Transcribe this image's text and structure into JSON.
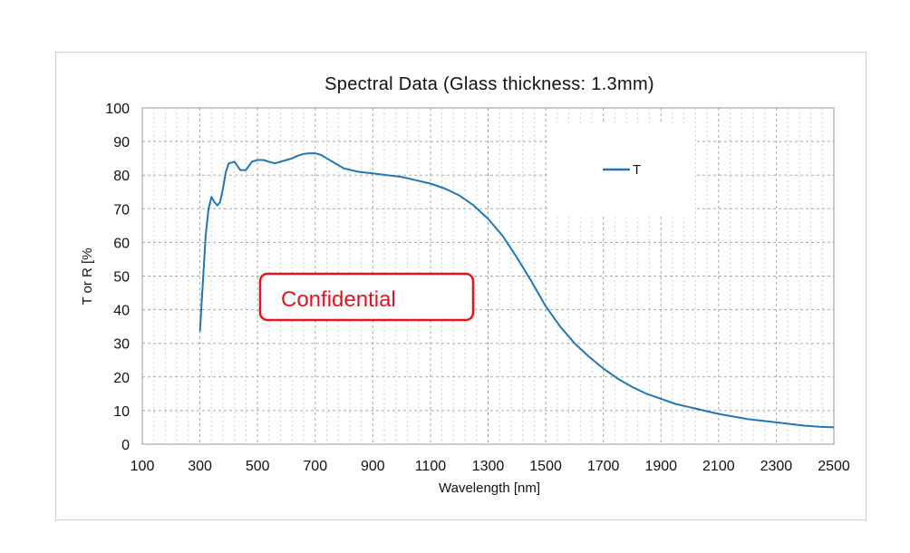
{
  "chart_data": {
    "type": "line",
    "title": "Spectral Data (Glass thickness: 1.3mm)",
    "xlabel": "Wavelength [nm]",
    "ylabel": "T or R [%",
    "xlim": [
      100,
      2500
    ],
    "ylim": [
      0,
      100
    ],
    "x_ticks": [
      100,
      300,
      500,
      700,
      900,
      1100,
      1300,
      1500,
      1700,
      1900,
      2100,
      2300,
      2500
    ],
    "y_ticks": [
      0,
      10,
      20,
      30,
      40,
      50,
      60,
      70,
      80,
      90,
      100
    ],
    "grid": true,
    "legend_position": "top-right",
    "series": [
      {
        "name": "T",
        "color": "#1f77b4",
        "x": [
          300,
          310,
          320,
          330,
          340,
          350,
          360,
          370,
          380,
          390,
          400,
          420,
          440,
          460,
          480,
          500,
          520,
          540,
          560,
          580,
          600,
          620,
          640,
          660,
          680,
          700,
          720,
          740,
          760,
          780,
          800,
          850,
          900,
          950,
          1000,
          1050,
          1100,
          1150,
          1200,
          1250,
          1300,
          1350,
          1400,
          1450,
          1500,
          1550,
          1600,
          1650,
          1700,
          1750,
          1800,
          1850,
          1900,
          1950,
          2000,
          2100,
          2200,
          2300,
          2400,
          2450,
          2500
        ],
        "y": [
          33.5,
          48,
          62,
          70,
          73.5,
          72,
          71,
          72,
          76,
          81,
          83.5,
          84,
          81.5,
          81.5,
          84,
          84.5,
          84.5,
          84,
          83.5,
          84,
          84.5,
          85,
          85.8,
          86.3,
          86.5,
          86.5,
          86,
          85,
          84,
          83,
          82,
          81,
          80.5,
          80,
          79.5,
          78.5,
          77.5,
          76,
          74,
          71,
          67,
          62,
          55.5,
          48.5,
          41,
          35,
          30,
          26,
          22.5,
          19.5,
          17,
          15,
          13.5,
          12,
          11,
          9,
          7.5,
          6.5,
          5.5,
          5.2,
          5
        ]
      }
    ]
  },
  "stamp": {
    "text": "Confidential",
    "color": "#e8121f"
  }
}
